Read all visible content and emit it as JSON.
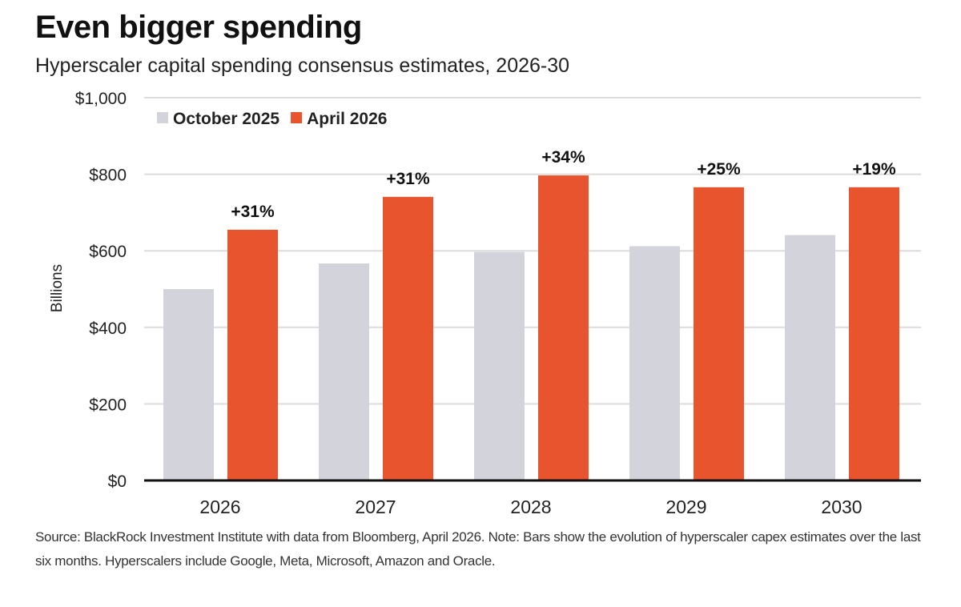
{
  "chart_data": {
    "type": "bar",
    "title": "Even bigger spending",
    "subtitle": "Hyperscaler capital spending consensus estimates, 2026-30",
    "xlabel": "",
    "ylabel": "Billions",
    "ylim": [
      0,
      1000
    ],
    "yticks": [
      0,
      200,
      400,
      600,
      800,
      1000
    ],
    "ytick_labels": [
      "$0",
      "$200",
      "$400",
      "$600",
      "$800",
      "$1,000"
    ],
    "grid": true,
    "legend_placement": "top-left",
    "categories": [
      "2026",
      "2027",
      "2028",
      "2029",
      "2030"
    ],
    "series": [
      {
        "name": "October 2025",
        "color": "#d3d3dc",
        "values": [
          500,
          567,
          597,
          612,
          641
        ]
      },
      {
        "name": "April 2026",
        "color": "#e8542e",
        "values": [
          655,
          741,
          797,
          766,
          766
        ]
      }
    ],
    "annotations": [
      "+31%",
      "+31%",
      "+34%",
      "+25%",
      "+19%"
    ]
  },
  "source": "Source: BlackRock Investment Institute with data from Bloomberg, April 2026. Note: Bars show the evolution of hyperscaler capex estimates over the last six months. Hyperscalers include Google, Meta, Microsoft, Amazon and Oracle."
}
